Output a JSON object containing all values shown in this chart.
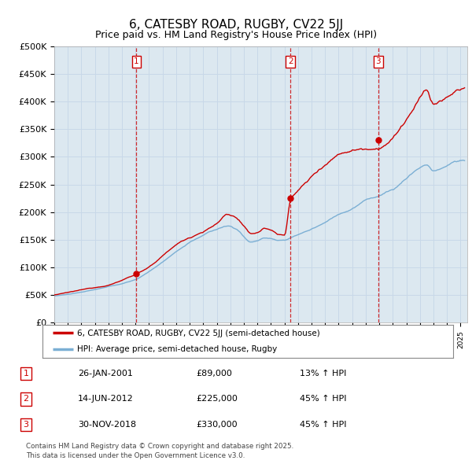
{
  "title": "6, CATESBY ROAD, RUGBY, CV22 5JJ",
  "subtitle": "Price paid vs. HM Land Registry's House Price Index (HPI)",
  "xlim_start": 1995.0,
  "xlim_end": 2025.5,
  "ylim": [
    0,
    500000
  ],
  "yticks": [
    0,
    50000,
    100000,
    150000,
    200000,
    250000,
    300000,
    350000,
    400000,
    450000,
    500000
  ],
  "ytick_labels": [
    "£0",
    "£50K",
    "£100K",
    "£150K",
    "£200K",
    "£250K",
    "£300K",
    "£350K",
    "£400K",
    "£450K",
    "£500K"
  ],
  "sale_dates": [
    2001.07,
    2012.45,
    2018.92
  ],
  "sale_prices": [
    89000,
    225000,
    330000
  ],
  "sale_labels": [
    "1",
    "2",
    "3"
  ],
  "hpi_red_color": "#cc0000",
  "hpi_blue_color": "#7bafd4",
  "vline_color": "#cc0000",
  "grid_color": "#c8d8e8",
  "bg_color": "#ffffff",
  "chart_bg_color": "#dce8f0",
  "legend_entries": [
    "6, CATESBY ROAD, RUGBY, CV22 5JJ (semi-detached house)",
    "HPI: Average price, semi-detached house, Rugby"
  ],
  "table_data": [
    [
      "1",
      "26-JAN-2001",
      "£89,000",
      "13% ↑ HPI"
    ],
    [
      "2",
      "14-JUN-2012",
      "£225,000",
      "45% ↑ HPI"
    ],
    [
      "3",
      "30-NOV-2018",
      "£330,000",
      "45% ↑ HPI"
    ]
  ],
  "footer": "Contains HM Land Registry data © Crown copyright and database right 2025.\nThis data is licensed under the Open Government Licence v3.0.",
  "title_fontsize": 11,
  "subtitle_fontsize": 9,
  "axis_fontsize": 8
}
